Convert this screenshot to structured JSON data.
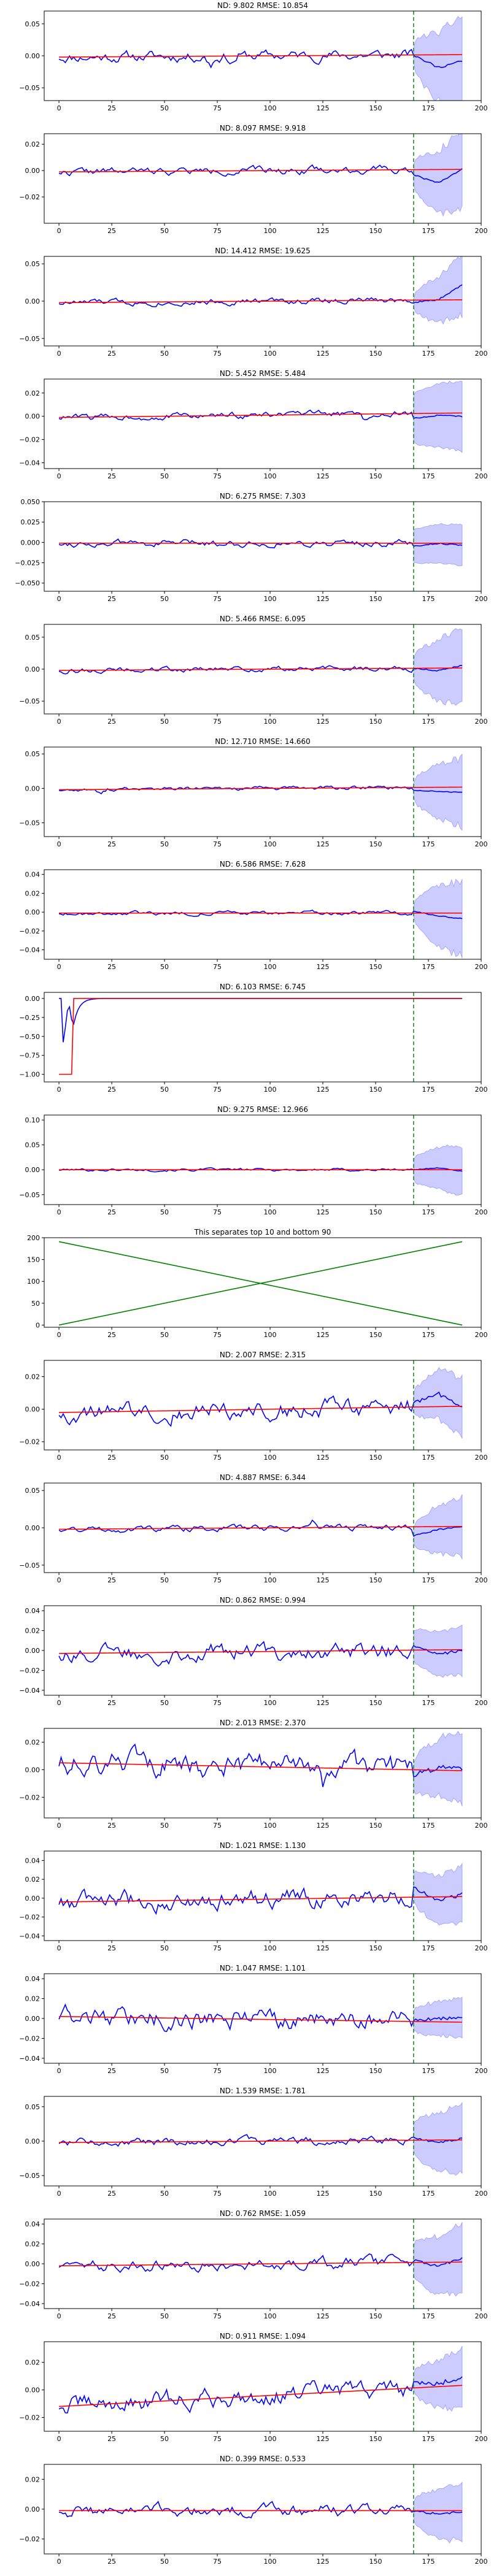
{
  "colors": {
    "prediction": "#0000ff",
    "truth": "#ff0000",
    "band": "#0000ff",
    "split": "#008000",
    "cross": "#008000"
  },
  "chart_data": [
    {
      "type": "line",
      "title": "ND:  9.802 RMSE:  10.854",
      "xlim": [
        -7,
        200
      ],
      "ylim": [
        -0.07,
        0.07
      ],
      "xticks": [
        0,
        25,
        50,
        75,
        100,
        125,
        150,
        175,
        200
      ],
      "yticks": [
        -0.05,
        0.0,
        0.05
      ],
      "ytick_labels": [
        "−0.05",
        "0.00",
        "0.05"
      ],
      "split_x": 168,
      "band_halfwidth": [
        0.012,
        0.07
      ],
      "seed": 11,
      "truth_slope": 2e-05,
      "truth_offset": -0.002,
      "pred_noise": 0.006,
      "spikes": [
        [
          72,
          -0.012
        ],
        [
          82,
          -0.01
        ]
      ],
      "tail": [
        0.0,
        -0.02,
        -0.01
      ]
    },
    {
      "type": "line",
      "title": "ND:  8.097 RMSE:  9.918",
      "xlim": [
        -7,
        200
      ],
      "ylim": [
        -0.04,
        0.028
      ],
      "xticks": [
        0,
        25,
        50,
        75,
        100,
        125,
        150,
        175,
        200
      ],
      "yticks": [
        -0.02,
        0.0,
        0.02
      ],
      "ytick_labels": [
        "−0.02",
        "0.00",
        "0.02"
      ],
      "split_x": 168,
      "band_halfwidth": [
        0.008,
        0.03
      ],
      "seed": 22,
      "truth_slope": 1e-05,
      "truth_offset": -0.001,
      "pred_noise": 0.002,
      "spikes": [
        [
          120,
          0.004
        ]
      ],
      "tail": [
        -0.004,
        -0.01,
        0.0
      ]
    },
    {
      "type": "line",
      "title": "ND:  14.412 RMSE:  19.625",
      "xlim": [
        -7,
        200
      ],
      "ylim": [
        -0.06,
        0.06
      ],
      "xticks": [
        0,
        25,
        50,
        75,
        100,
        125,
        150,
        175,
        200
      ],
      "yticks": [
        -0.05,
        0.0,
        0.05
      ],
      "ytick_labels": [
        "−0.05",
        "0.00",
        "0.05"
      ],
      "split_x": 168,
      "band_halfwidth": [
        0.006,
        0.04
      ],
      "seed": 33,
      "truth_slope": 2e-05,
      "truth_offset": -0.002,
      "pred_noise": 0.003,
      "spikes": [],
      "tail": [
        -0.003,
        0.0,
        0.02
      ]
    },
    {
      "type": "line",
      "title": "ND:  5.452 RMSE:  5.484",
      "xlim": [
        -7,
        200
      ],
      "ylim": [
        -0.045,
        0.032
      ],
      "xticks": [
        0,
        25,
        50,
        75,
        100,
        125,
        150,
        175,
        200
      ],
      "yticks": [
        -0.04,
        -0.02,
        0.0,
        0.02
      ],
      "ytick_labels": [
        "−0.04",
        "−0.02",
        "0.00",
        "0.02"
      ],
      "split_x": 168,
      "band_halfwidth": [
        0.02,
        0.03
      ],
      "seed": 44,
      "truth_slope": 2e-05,
      "truth_offset": -0.001,
      "pred_noise": 0.002,
      "spikes": [
        [
          145,
          -0.006
        ]
      ],
      "tail": [
        -0.004,
        -0.002,
        -0.003
      ]
    },
    {
      "type": "line",
      "title": "ND:  6.275 RMSE:  7.303",
      "xlim": [
        -7,
        200
      ],
      "ylim": [
        -0.06,
        0.05
      ],
      "xticks": [
        0,
        25,
        50,
        75,
        100,
        125,
        150,
        175,
        200
      ],
      "yticks": [
        -0.05,
        -0.025,
        0.0,
        0.025,
        0.05
      ],
      "ytick_labels": [
        "−0.050",
        "−0.025",
        "0.000",
        "0.025",
        "0.050"
      ],
      "split_x": 168,
      "band_halfwidth": [
        0.02,
        0.025
      ],
      "seed": 55,
      "truth_slope": 0.0,
      "truth_offset": -0.001,
      "pred_noise": 0.003,
      "spikes": [],
      "tail": [
        -0.004,
        0.0,
        -0.003
      ]
    },
    {
      "type": "line",
      "title": "ND:  5.466 RMSE:  6.095",
      "xlim": [
        -7,
        200
      ],
      "ylim": [
        -0.07,
        0.07
      ],
      "xticks": [
        0,
        25,
        50,
        75,
        100,
        125,
        150,
        175,
        200
      ],
      "yticks": [
        -0.05,
        0.0,
        0.05
      ],
      "ytick_labels": [
        "−0.05",
        "0.00",
        "0.05"
      ],
      "split_x": 168,
      "band_halfwidth": [
        0.015,
        0.06
      ],
      "seed": 66,
      "truth_slope": 2e-05,
      "truth_offset": -0.002,
      "pred_noise": 0.003,
      "spikes": [],
      "tail": [
        0.0,
        -0.004,
        0.004
      ]
    },
    {
      "type": "line",
      "title": "ND:  12.710 RMSE:  14.660",
      "xlim": [
        -7,
        200
      ],
      "ylim": [
        -0.07,
        0.06
      ],
      "xticks": [
        0,
        25,
        50,
        75,
        100,
        125,
        150,
        175,
        200
      ],
      "yticks": [
        -0.05,
        0.0,
        0.05
      ],
      "ytick_labels": [
        "−0.05",
        "0.00",
        "0.05"
      ],
      "split_x": 168,
      "band_halfwidth": [
        0.01,
        0.05
      ],
      "seed": 77,
      "truth_slope": 2e-05,
      "truth_offset": -0.002,
      "pred_noise": 0.002,
      "spikes": [
        [
          20,
          -0.008
        ]
      ],
      "tail": [
        -0.004,
        -0.006,
        -0.008
      ]
    },
    {
      "type": "line",
      "title": "ND:  6.586 RMSE:  7.628",
      "xlim": [
        -7,
        200
      ],
      "ylim": [
        -0.05,
        0.045
      ],
      "xticks": [
        0,
        25,
        50,
        75,
        100,
        125,
        150,
        175,
        200
      ],
      "yticks": [
        -0.04,
        -0.02,
        0.0,
        0.02,
        0.04
      ],
      "ytick_labels": [
        "−0.04",
        "−0.02",
        "0.00",
        "0.02",
        "0.04"
      ],
      "split_x": 168,
      "band_halfwidth": [
        0.005,
        0.04
      ],
      "seed": 88,
      "truth_slope": 0.0,
      "truth_offset": -0.001,
      "pred_noise": 0.0015,
      "spikes": [],
      "tail": [
        0.002,
        -0.003,
        -0.006
      ]
    },
    {
      "type": "line",
      "title": "ND:  6.103 RMSE:  6.745",
      "xlim": [
        -7,
        200
      ],
      "ylim": [
        -1.1,
        0.08
      ],
      "xticks": [
        0,
        25,
        50,
        75,
        100,
        125,
        150,
        175,
        200
      ],
      "yticks": [
        -1.0,
        -0.75,
        -0.5,
        -0.25,
        0.0
      ],
      "ytick_labels": [
        "−1.00",
        "−0.75",
        "−0.50",
        "−0.25",
        "0.00"
      ],
      "split_x": 168,
      "band_halfwidth": [
        0.0,
        0.0
      ],
      "seed": 99,
      "truth_slope": 0.0,
      "truth_offset": 0.0,
      "pred_noise": 0.001,
      "spikes": [],
      "tail": [
        0.0,
        0.0,
        0.0
      ],
      "special": "step"
    },
    {
      "type": "line",
      "title": "ND:  9.275 RMSE:  12.966",
      "xlim": [
        -7,
        200
      ],
      "ylim": [
        -0.07,
        0.11
      ],
      "xticks": [
        0,
        25,
        50,
        75,
        100,
        125,
        150,
        175,
        200
      ],
      "yticks": [
        -0.05,
        0.0,
        0.05,
        0.1
      ],
      "ytick_labels": [
        "−0.05",
        "0.00",
        "0.05",
        "0.10"
      ],
      "split_x": 168,
      "band_halfwidth": [
        0.02,
        0.05
      ],
      "seed": 101,
      "truth_slope": 0.0,
      "truth_offset": 0.0,
      "pred_noise": 0.002,
      "spikes": [],
      "tail": [
        0.0,
        0.004,
        -0.003
      ]
    },
    {
      "type": "line",
      "title": "This separates top 10 and bottom 90",
      "xlim": [
        -7,
        200
      ],
      "ylim": [
        -5,
        200
      ],
      "xticks": [
        0,
        25,
        50,
        75,
        100,
        125,
        150,
        175,
        200
      ],
      "yticks": [
        0,
        50,
        100,
        150,
        200
      ],
      "ytick_labels": [
        "0",
        "50",
        "100",
        "150",
        "200"
      ],
      "special": "cross",
      "series": [
        {
          "name": "increasing",
          "x": [
            0,
            191
          ],
          "y": [
            0,
            191
          ]
        },
        {
          "name": "decreasing",
          "x": [
            0,
            191
          ],
          "y": [
            191,
            0
          ]
        }
      ]
    },
    {
      "type": "line",
      "title": "ND:  2.007 RMSE:  2.315",
      "xlim": [
        -7,
        200
      ],
      "ylim": [
        -0.025,
        0.03
      ],
      "xticks": [
        0,
        25,
        50,
        75,
        100,
        125,
        150,
        175,
        200
      ],
      "yticks": [
        -0.02,
        0.0,
        0.02
      ],
      "ytick_labels": [
        "−0.02",
        "0.00",
        "0.02"
      ],
      "split_x": 168,
      "band_halfwidth": [
        0.006,
        0.018
      ],
      "seed": 121,
      "truth_slope": 2e-05,
      "truth_offset": -0.002,
      "pred_noise": 0.004,
      "spikes": [],
      "tail": [
        0.002,
        0.008,
        0.0
      ]
    },
    {
      "type": "line",
      "title": "ND:  4.887 RMSE:  6.344",
      "xlim": [
        -7,
        200
      ],
      "ylim": [
        -0.06,
        0.06
      ],
      "xticks": [
        0,
        25,
        50,
        75,
        100,
        125,
        150,
        175,
        200
      ],
      "yticks": [
        -0.05,
        0.0,
        0.05
      ],
      "ytick_labels": [
        "−0.05",
        "0.00",
        "0.05"
      ],
      "split_x": 168,
      "band_halfwidth": [
        0.01,
        0.04
      ],
      "seed": 131,
      "truth_slope": 2e-05,
      "truth_offset": -0.002,
      "pred_noise": 0.003,
      "spikes": [
        [
          120,
          0.01
        ]
      ],
      "tail": [
        -0.012,
        -0.004,
        0.0
      ]
    },
    {
      "type": "line",
      "title": "ND:  0.862 RMSE:  0.994",
      "xlim": [
        -7,
        200
      ],
      "ylim": [
        -0.045,
        0.045
      ],
      "xticks": [
        0,
        25,
        50,
        75,
        100,
        125,
        150,
        175,
        200
      ],
      "yticks": [
        -0.04,
        -0.02,
        0.0,
        0.02,
        0.04
      ],
      "ytick_labels": [
        "−0.04",
        "−0.02",
        "0.00",
        "0.02",
        "0.04"
      ],
      "split_x": 168,
      "band_halfwidth": [
        0.015,
        0.025
      ],
      "seed": 141,
      "truth_slope": 2e-05,
      "truth_offset": -0.003,
      "pred_noise": 0.006,
      "spikes": [],
      "tail": [
        0.004,
        -0.005,
        0.0
      ]
    },
    {
      "type": "line",
      "title": "ND:  2.013 RMSE:  2.370",
      "xlim": [
        -7,
        200
      ],
      "ylim": [
        -0.035,
        0.03
      ],
      "xticks": [
        0,
        25,
        50,
        75,
        100,
        125,
        150,
        175,
        200
      ],
      "yticks": [
        -0.02,
        0.0,
        0.02
      ],
      "ytick_labels": [
        "−0.02",
        "0.00",
        "0.02"
      ],
      "split_x": 168,
      "band_halfwidth": [
        0.01,
        0.025
      ],
      "seed": 151,
      "truth_slope": -3e-05,
      "truth_offset": 0.005,
      "pred_noise": 0.006,
      "spikes": [
        [
          20,
          -0.014
        ],
        [
          125,
          -0.012
        ]
      ],
      "tail": [
        -0.004,
        0.002,
        0.002
      ]
    },
    {
      "type": "line",
      "title": "ND:  1.021 RMSE:  1.130",
      "xlim": [
        -7,
        200
      ],
      "ylim": [
        -0.045,
        0.05
      ],
      "xticks": [
        0,
        25,
        50,
        75,
        100,
        125,
        150,
        175,
        200
      ],
      "yticks": [
        -0.04,
        -0.02,
        0.0,
        0.02,
        0.04
      ],
      "ytick_labels": [
        "−0.04",
        "−0.02",
        "0.00",
        "0.02",
        "0.04"
      ],
      "split_x": 168,
      "band_halfwidth": [
        0.015,
        0.03
      ],
      "seed": 161,
      "truth_slope": 3e-05,
      "truth_offset": -0.004,
      "pred_noise": 0.007,
      "spikes": [],
      "tail": [
        0.01,
        -0.004,
        0.002
      ]
    },
    {
      "type": "line",
      "title": "ND:  1.047 RMSE:  1.101",
      "xlim": [
        -7,
        200
      ],
      "ylim": [
        -0.045,
        0.045
      ],
      "xticks": [
        0,
        25,
        50,
        75,
        100,
        125,
        150,
        175,
        200
      ],
      "yticks": [
        -0.04,
        -0.02,
        0.0,
        0.02,
        0.04
      ],
      "ytick_labels": [
        "−0.04",
        "−0.02",
        "0.00",
        "0.02",
        "0.04"
      ],
      "split_x": 168,
      "band_halfwidth": [
        0.01,
        0.02
      ],
      "seed": 171,
      "truth_slope": -3e-05,
      "truth_offset": 0.002,
      "pred_noise": 0.007,
      "spikes": [],
      "tail": [
        0.002,
        0.004,
        0.003
      ]
    },
    {
      "type": "line",
      "title": "ND:  1.539 RMSE:  1.781",
      "xlim": [
        -7,
        200
      ],
      "ylim": [
        -0.065,
        0.065
      ],
      "xticks": [
        0,
        25,
        50,
        75,
        100,
        125,
        150,
        175,
        200
      ],
      "yticks": [
        -0.05,
        0.0,
        0.05
      ],
      "ytick_labels": [
        "−0.05",
        "0.00",
        "0.05"
      ],
      "split_x": 168,
      "band_halfwidth": [
        0.02,
        0.05
      ],
      "seed": 181,
      "truth_slope": 2e-05,
      "truth_offset": -0.002,
      "pred_noise": 0.004,
      "spikes": [],
      "tail": [
        0.004,
        -0.004,
        0.002
      ]
    },
    {
      "type": "line",
      "title": "ND:  0.762 RMSE:  1.059",
      "xlim": [
        -7,
        200
      ],
      "ylim": [
        -0.045,
        0.045
      ],
      "xticks": [
        0,
        25,
        50,
        75,
        100,
        125,
        150,
        175,
        200
      ],
      "yticks": [
        -0.04,
        -0.02,
        0.0,
        0.02,
        0.04
      ],
      "ytick_labels": [
        "−0.04",
        "−0.02",
        "0.00",
        "0.02",
        "0.04"
      ],
      "split_x": 168,
      "band_halfwidth": [
        0.015,
        0.035
      ],
      "seed": 191,
      "truth_slope": 2e-05,
      "truth_offset": -0.002,
      "pred_noise": 0.004,
      "spikes": [],
      "tail": [
        0.002,
        -0.004,
        0.004
      ]
    },
    {
      "type": "line",
      "title": "ND:  0.911 RMSE:  1.094",
      "xlim": [
        -7,
        200
      ],
      "ylim": [
        -0.03,
        0.035
      ],
      "xticks": [
        0,
        25,
        50,
        75,
        100,
        125,
        150,
        175,
        200
      ],
      "yticks": [
        -0.02,
        0.0,
        0.02
      ],
      "ytick_labels": [
        "−0.02",
        "0.00",
        "0.02"
      ],
      "split_x": 168,
      "band_halfwidth": [
        0.006,
        0.022
      ],
      "seed": 201,
      "truth_slope": 8e-05,
      "truth_offset": -0.012,
      "pred_noise": 0.005,
      "spikes": [],
      "tail": [
        0.004,
        0.002,
        0.006
      ]
    },
    {
      "type": "line",
      "title": "ND:  0.399 RMSE:  0.533",
      "xlim": [
        -7,
        200
      ],
      "ylim": [
        -0.03,
        0.03
      ],
      "xticks": [
        0,
        25,
        50,
        75,
        100,
        125,
        150,
        175,
        200
      ],
      "yticks": [
        -0.02,
        0.0,
        0.02
      ],
      "ytick_labels": [
        "−0.02",
        "0.00",
        "0.02"
      ],
      "split_x": 168,
      "band_halfwidth": [
        0.006,
        0.02
      ],
      "seed": 211,
      "truth_slope": 0.0,
      "truth_offset": -0.001,
      "pred_noise": 0.003,
      "spikes": [],
      "tail": [
        0.0,
        -0.002,
        -0.001
      ]
    }
  ]
}
